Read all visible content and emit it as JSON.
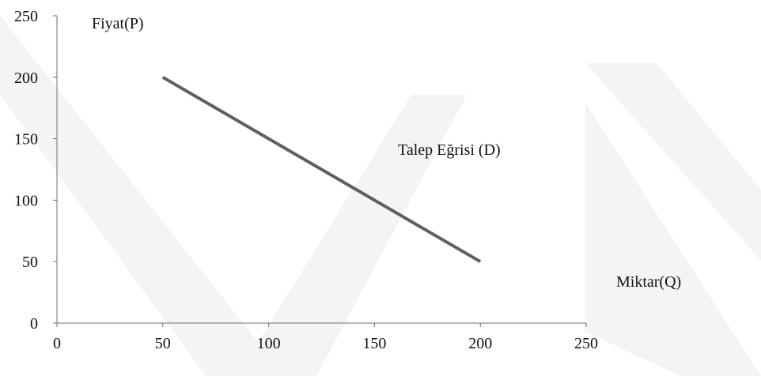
{
  "chart_data": {
    "type": "line",
    "title": "",
    "xlabel": "Miktar(Q)",
    "ylabel": "Fiyat(P)",
    "xlim": [
      0,
      250
    ],
    "ylim": [
      0,
      250
    ],
    "x_ticks": [
      "0",
      "50",
      "100",
      "150",
      "200",
      "250"
    ],
    "y_ticks": [
      "0",
      "50",
      "100",
      "150",
      "200",
      "250"
    ],
    "grid": false,
    "series": [
      {
        "name": "Talep Eğrisi (D)",
        "color": "#5f5f5f",
        "x": [
          50,
          200
        ],
        "y": [
          200,
          50
        ]
      }
    ]
  }
}
